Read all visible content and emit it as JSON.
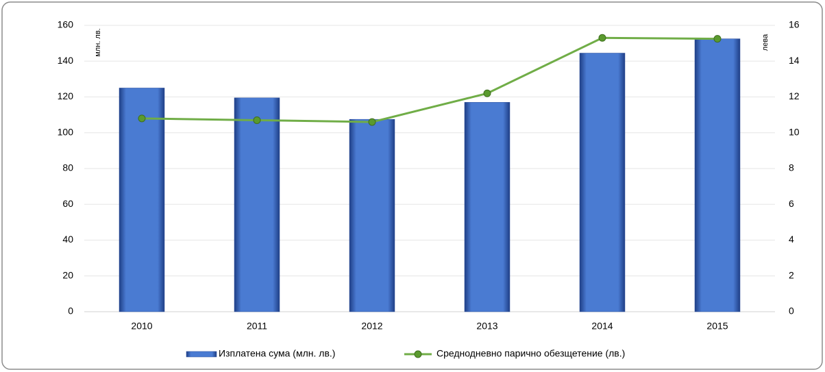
{
  "chart_data": {
    "type": "bar",
    "y_label": "млн. лв.",
    "y2_label": "лева",
    "categories": [
      "2010",
      "2011",
      "2012",
      "2013",
      "2014",
      "2015"
    ],
    "series": [
      {
        "name": "Изплатена сума (млн. лв.)",
        "type": "bar",
        "color": "#4a7bd2",
        "values": [
          125,
          119.5,
          107.5,
          117,
          144.5,
          152.5
        ]
      },
      {
        "name": "Среднодневно парично обезщетение (лв.)",
        "type": "line",
        "axis": "y2",
        "color": "#70ad47",
        "values": [
          10.8,
          10.7,
          10.6,
          12.2,
          15.3,
          15.25
        ]
      }
    ],
    "ylim": [
      0,
      160
    ],
    "yticks": [
      0,
      20,
      40,
      60,
      80,
      100,
      120,
      140,
      160
    ],
    "y2lim": [
      0,
      16
    ],
    "y2ticks": [
      0,
      2,
      4,
      6,
      8,
      10,
      12,
      14,
      16
    ],
    "grid": true,
    "legend": "bottom"
  }
}
